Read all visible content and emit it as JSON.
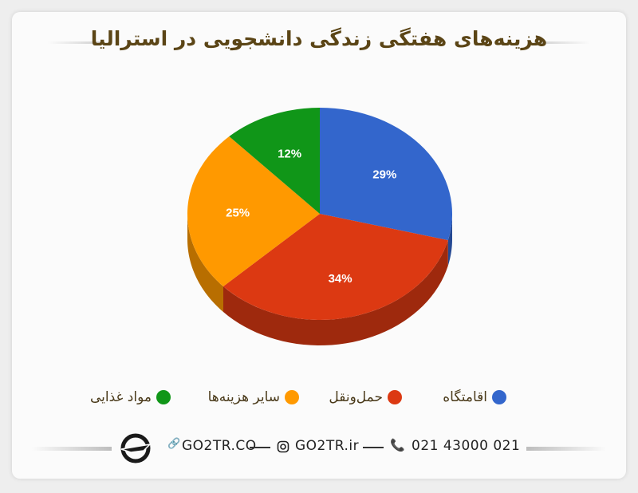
{
  "chart_data": {
    "type": "pie",
    "title": "هزینه‌های هفتگی زندگی دانشجویی در استرالیا",
    "three_d": true,
    "legend_position": "bottom",
    "slices": [
      {
        "name": "اقامتگاه",
        "value": 29,
        "label": "29%",
        "color": "#3366cc"
      },
      {
        "name": "حمل‌ونقل",
        "value": 34,
        "label": "34%",
        "color": "#dc3912"
      },
      {
        "name": "سایر هزینه‌ها",
        "value": 25,
        "label": "25%",
        "color": "#ff9900"
      },
      {
        "name": "مواد غذایی",
        "value": 12,
        "label": "12%",
        "color": "#109618"
      }
    ]
  },
  "footer": {
    "logo_icon": "plane-logo-icon",
    "website": "GO2TR.CO",
    "instagram": "GO2TR.ir",
    "phone": "021 43000 021"
  }
}
